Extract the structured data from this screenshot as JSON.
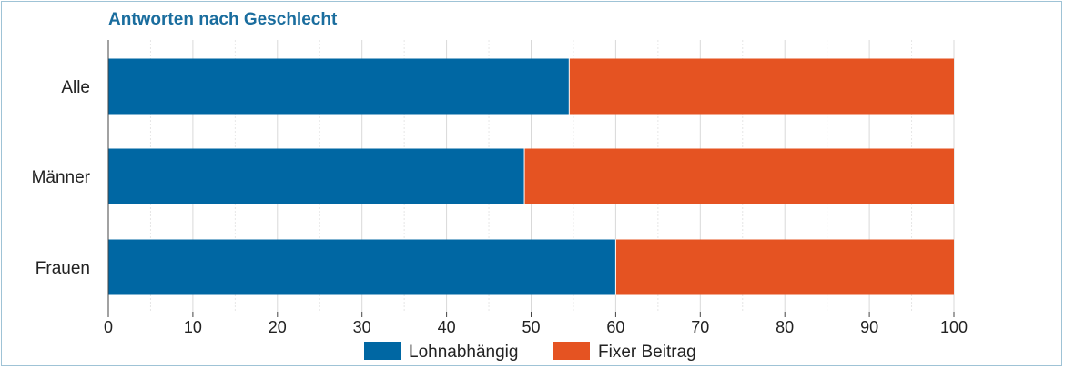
{
  "colors": {
    "lohnabhaengig": "#0067a3",
    "fixer_beitrag": "#e55322",
    "title": "#1a6d9e",
    "grid": "#d9d9d9"
  },
  "chart_data": {
    "type": "bar",
    "orientation": "horizontal",
    "stacked": true,
    "title": "Antworten nach Geschlecht",
    "categories": [
      "Alle",
      "Männer",
      "Frauen"
    ],
    "series": [
      {
        "name": "Lohnabhängig",
        "values": [
          54.5,
          49.2,
          60.0
        ]
      },
      {
        "name": "Fixer Beitrag",
        "values": [
          45.5,
          50.8,
          40.0
        ]
      }
    ],
    "xlim": [
      0,
      100
    ],
    "xticks": [
      0,
      10,
      20,
      30,
      40,
      50,
      60,
      70,
      80,
      90,
      100
    ],
    "grid": true,
    "legend_position": "bottom"
  }
}
